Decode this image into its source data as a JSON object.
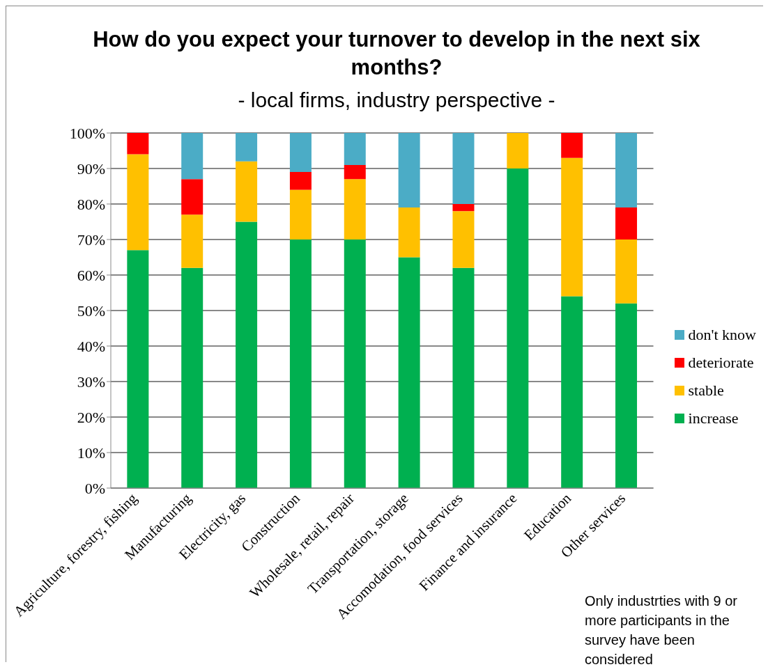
{
  "chart_data": {
    "type": "bar",
    "title": "How do you expect your turnover to develop in the next six months?",
    "subtitle": "- local firms, industry perspective -",
    "categories": [
      "Agriculture, forestry, fishing",
      "Manufacturing",
      "Electricity, gas",
      "Construction",
      "Wholesale, retail, repair",
      "Transportation, storage",
      "Accomodation, food services",
      "Finance and insurance",
      "Education",
      "Other services"
    ],
    "series": [
      {
        "name": "increase",
        "color": "#00b050",
        "values": [
          67,
          62,
          75,
          70,
          70,
          65,
          62,
          90,
          54,
          52
        ]
      },
      {
        "name": "stable",
        "color": "#ffc000",
        "values": [
          27,
          15,
          17,
          14,
          17,
          14,
          16,
          10,
          39,
          18
        ]
      },
      {
        "name": "deteriorate",
        "color": "#ff0000",
        "values": [
          6,
          10,
          0,
          5,
          4,
          0,
          2,
          0,
          7,
          9
        ]
      },
      {
        "name": "don't know",
        "color": "#4bacc6",
        "values": [
          0,
          13,
          8,
          11,
          9,
          21,
          20,
          0,
          0,
          21
        ]
      }
    ],
    "stacked": true,
    "ylim": [
      0,
      100
    ],
    "yticks": [
      {
        "value": 0,
        "label": "0%"
      },
      {
        "value": 10,
        "label": "10%"
      },
      {
        "value": 20,
        "label": "20%"
      },
      {
        "value": 30,
        "label": "30%"
      },
      {
        "value": 40,
        "label": "40%"
      },
      {
        "value": 50,
        "label": "50%"
      },
      {
        "value": 60,
        "label": "60%"
      },
      {
        "value": 70,
        "label": "70%"
      },
      {
        "value": 80,
        "label": "80%"
      },
      {
        "value": 90,
        "label": "90%"
      },
      {
        "value": 100,
        "label": "100%"
      }
    ],
    "grid": "y",
    "legend": "right",
    "annotations": [
      "Only industrties with 9 or more participants in the survey have been considered"
    ]
  }
}
